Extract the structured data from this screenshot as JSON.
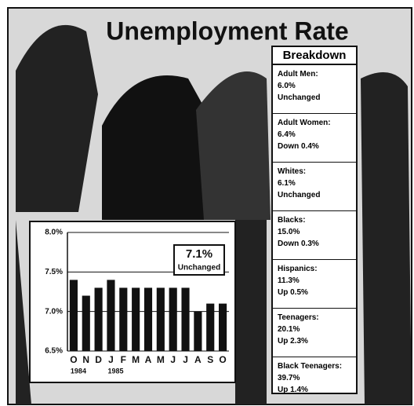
{
  "chart_data": {
    "type": "bar",
    "title": "Unemployment Rate",
    "categories": [
      "O",
      "N",
      "D",
      "J",
      "F",
      "M",
      "A",
      "M",
      "J",
      "J",
      "A",
      "S",
      "O"
    ],
    "x_sublabels": [
      "1984",
      null,
      null,
      "1985",
      null,
      null,
      null,
      null,
      null,
      null,
      null,
      null,
      null
    ],
    "values": [
      7.4,
      7.2,
      7.3,
      7.4,
      7.3,
      7.3,
      7.3,
      7.3,
      7.3,
      7.3,
      7.0,
      7.1,
      7.1
    ],
    "color": "#111111",
    "ylim": [
      6.5,
      8.0
    ],
    "yticks": [
      {
        "value": 6.5,
        "label": "6.5%"
      },
      {
        "value": 7.0,
        "label": "7.0%"
      },
      {
        "value": 7.5,
        "label": "7.5%"
      },
      {
        "value": 8.0,
        "label": "8.0%"
      }
    ],
    "grid": true,
    "annotation": {
      "value": "7.1%",
      "note": "Unchanged"
    }
  },
  "breakdown": {
    "title": "Breakdown",
    "items": [
      {
        "label": "Adult Men:",
        "value": "6.0%",
        "change": "Unchanged"
      },
      {
        "label": "Adult Women:",
        "value": "6.4%",
        "change": "Down 0.4%"
      },
      {
        "label": "Whites:",
        "value": "6.1%",
        "change": "Unchanged"
      },
      {
        "label": "Blacks:",
        "value": "15.0%",
        "change": "Down 0.3%"
      },
      {
        "label": "Hispanics:",
        "value": "11.3%",
        "change": "Up 0.5%"
      },
      {
        "label": "Teenagers:",
        "value": "20.1%",
        "change": "Up 2.3%"
      },
      {
        "label": "Black Teenagers:",
        "value": "39.7%",
        "change": "Up 1.4%"
      }
    ]
  }
}
